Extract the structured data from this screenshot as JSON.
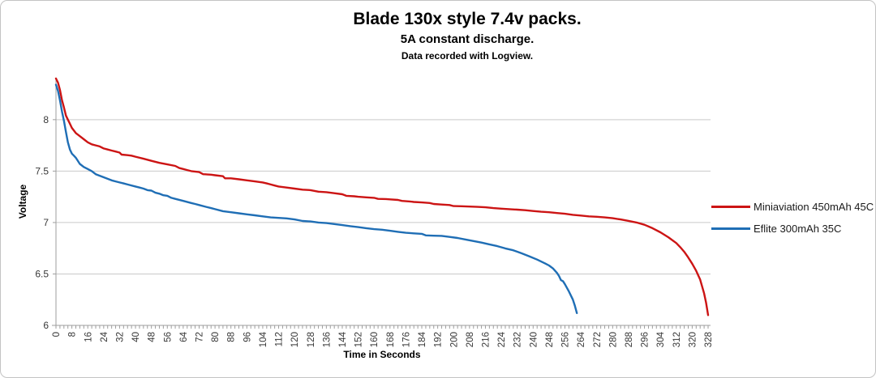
{
  "chart_data": {
    "type": "line",
    "title": "Blade 130x style 7.4v packs.",
    "subtitle": "5A constant discharge.",
    "note": "Data recorded with Logview.",
    "xlabel": "Time in Seconds",
    "ylabel": "Voltage",
    "xlim": [
      0,
      328
    ],
    "ylim": [
      6,
      8.4
    ],
    "grid": "horizontal",
    "legend_position": "right",
    "x_tick_step": 8,
    "x_minor_tick_step": 2,
    "x_ticks": [
      0,
      8,
      16,
      24,
      32,
      40,
      48,
      56,
      64,
      72,
      80,
      88,
      96,
      104,
      112,
      120,
      128,
      136,
      144,
      152,
      160,
      168,
      176,
      184,
      192,
      200,
      208,
      216,
      224,
      232,
      240,
      248,
      256,
      264,
      272,
      280,
      288,
      296,
      304,
      312,
      320,
      328
    ],
    "y_ticks": [
      6,
      6.5,
      7,
      7.5,
      8
    ],
    "y_tick_labels": [
      "6",
      "6.5",
      "7",
      "7.5",
      "8"
    ],
    "colors": {
      "grid": "#c9c9c9",
      "axis": "#9e9e9e",
      "tick_text": "#383838"
    },
    "series": [
      {
        "name": "Miniaviation 450mAh 45C",
        "color": "#cc1414",
        "points": [
          [
            0,
            8.4
          ],
          [
            1,
            8.36
          ],
          [
            2,
            8.29
          ],
          [
            3,
            8.19
          ],
          [
            4,
            8.12
          ],
          [
            5,
            8.04
          ],
          [
            6,
            8.0
          ],
          [
            7,
            7.96
          ],
          [
            8,
            7.92
          ],
          [
            10,
            7.87
          ],
          [
            12,
            7.84
          ],
          [
            14,
            7.81
          ],
          [
            16,
            7.78
          ],
          [
            18,
            7.76
          ],
          [
            20,
            7.75
          ],
          [
            22,
            7.74
          ],
          [
            24,
            7.72
          ],
          [
            26,
            7.71
          ],
          [
            28,
            7.7
          ],
          [
            30,
            7.69
          ],
          [
            32,
            7.68
          ],
          [
            33,
            7.66
          ],
          [
            36,
            7.655
          ],
          [
            38,
            7.65
          ],
          [
            40,
            7.64
          ],
          [
            44,
            7.62
          ],
          [
            48,
            7.6
          ],
          [
            52,
            7.58
          ],
          [
            56,
            7.565
          ],
          [
            60,
            7.55
          ],
          [
            62,
            7.53
          ],
          [
            64,
            7.52
          ],
          [
            66,
            7.51
          ],
          [
            68,
            7.5
          ],
          [
            72,
            7.49
          ],
          [
            74,
            7.47
          ],
          [
            78,
            7.465
          ],
          [
            80,
            7.46
          ],
          [
            84,
            7.45
          ],
          [
            85,
            7.43
          ],
          [
            88,
            7.43
          ],
          [
            92,
            7.42
          ],
          [
            96,
            7.41
          ],
          [
            100,
            7.4
          ],
          [
            104,
            7.39
          ],
          [
            106,
            7.38
          ],
          [
            108,
            7.37
          ],
          [
            110,
            7.36
          ],
          [
            112,
            7.35
          ],
          [
            116,
            7.34
          ],
          [
            120,
            7.33
          ],
          [
            124,
            7.32
          ],
          [
            128,
            7.315
          ],
          [
            132,
            7.3
          ],
          [
            136,
            7.295
          ],
          [
            140,
            7.285
          ],
          [
            144,
            7.275
          ],
          [
            146,
            7.26
          ],
          [
            150,
            7.255
          ],
          [
            152,
            7.25
          ],
          [
            156,
            7.245
          ],
          [
            160,
            7.24
          ],
          [
            162,
            7.23
          ],
          [
            166,
            7.228
          ],
          [
            168,
            7.225
          ],
          [
            172,
            7.22
          ],
          [
            174,
            7.21
          ],
          [
            178,
            7.205
          ],
          [
            180,
            7.2
          ],
          [
            184,
            7.195
          ],
          [
            188,
            7.19
          ],
          [
            190,
            7.18
          ],
          [
            194,
            7.175
          ],
          [
            198,
            7.17
          ],
          [
            200,
            7.16
          ],
          [
            204,
            7.158
          ],
          [
            208,
            7.155
          ],
          [
            212,
            7.152
          ],
          [
            216,
            7.148
          ],
          [
            220,
            7.14
          ],
          [
            224,
            7.135
          ],
          [
            228,
            7.13
          ],
          [
            232,
            7.125
          ],
          [
            236,
            7.12
          ],
          [
            240,
            7.112
          ],
          [
            244,
            7.105
          ],
          [
            248,
            7.1
          ],
          [
            252,
            7.092
          ],
          [
            256,
            7.085
          ],
          [
            260,
            7.075
          ],
          [
            264,
            7.068
          ],
          [
            268,
            7.06
          ],
          [
            272,
            7.056
          ],
          [
            276,
            7.05
          ],
          [
            280,
            7.042
          ],
          [
            284,
            7.03
          ],
          [
            288,
            7.016
          ],
          [
            292,
            7.0
          ],
          [
            296,
            6.978
          ],
          [
            300,
            6.945
          ],
          [
            304,
            6.905
          ],
          [
            308,
            6.857
          ],
          [
            312,
            6.8
          ],
          [
            314,
            6.76
          ],
          [
            316,
            6.715
          ],
          [
            318,
            6.66
          ],
          [
            320,
            6.6
          ],
          [
            322,
            6.53
          ],
          [
            324,
            6.445
          ],
          [
            326,
            6.31
          ],
          [
            327,
            6.22
          ],
          [
            328,
            6.1
          ]
        ]
      },
      {
        "name": "Eflite 300mAh 35C",
        "color": "#1f6eb5",
        "points": [
          [
            0,
            8.34
          ],
          [
            1,
            8.28
          ],
          [
            2,
            8.19
          ],
          [
            3,
            8.08
          ],
          [
            4,
            7.99
          ],
          [
            5,
            7.88
          ],
          [
            6,
            7.78
          ],
          [
            7,
            7.71
          ],
          [
            8,
            7.67
          ],
          [
            9,
            7.65
          ],
          [
            10,
            7.63
          ],
          [
            12,
            7.57
          ],
          [
            14,
            7.54
          ],
          [
            16,
            7.52
          ],
          [
            18,
            7.5
          ],
          [
            20,
            7.47
          ],
          [
            22,
            7.455
          ],
          [
            24,
            7.44
          ],
          [
            26,
            7.425
          ],
          [
            28,
            7.41
          ],
          [
            30,
            7.4
          ],
          [
            32,
            7.39
          ],
          [
            34,
            7.38
          ],
          [
            36,
            7.37
          ],
          [
            40,
            7.35
          ],
          [
            42,
            7.34
          ],
          [
            44,
            7.33
          ],
          [
            46,
            7.315
          ],
          [
            48,
            7.31
          ],
          [
            50,
            7.29
          ],
          [
            52,
            7.28
          ],
          [
            54,
            7.265
          ],
          [
            56,
            7.26
          ],
          [
            58,
            7.24
          ],
          [
            60,
            7.23
          ],
          [
            64,
            7.21
          ],
          [
            68,
            7.19
          ],
          [
            70,
            7.18
          ],
          [
            72,
            7.17
          ],
          [
            76,
            7.15
          ],
          [
            78,
            7.14
          ],
          [
            80,
            7.13
          ],
          [
            84,
            7.11
          ],
          [
            88,
            7.1
          ],
          [
            92,
            7.09
          ],
          [
            96,
            7.08
          ],
          [
            100,
            7.07
          ],
          [
            104,
            7.06
          ],
          [
            108,
            7.05
          ],
          [
            112,
            7.045
          ],
          [
            116,
            7.04
          ],
          [
            120,
            7.03
          ],
          [
            124,
            7.015
          ],
          [
            128,
            7.01
          ],
          [
            132,
            7.0
          ],
          [
            136,
            6.995
          ],
          [
            140,
            6.985
          ],
          [
            144,
            6.975
          ],
          [
            148,
            6.965
          ],
          [
            152,
            6.955
          ],
          [
            156,
            6.945
          ],
          [
            160,
            6.936
          ],
          [
            164,
            6.93
          ],
          [
            168,
            6.92
          ],
          [
            172,
            6.91
          ],
          [
            176,
            6.9
          ],
          [
            180,
            6.895
          ],
          [
            184,
            6.89
          ],
          [
            186,
            6.875
          ],
          [
            190,
            6.872
          ],
          [
            194,
            6.87
          ],
          [
            198,
            6.86
          ],
          [
            202,
            6.85
          ],
          [
            206,
            6.835
          ],
          [
            210,
            6.82
          ],
          [
            214,
            6.805
          ],
          [
            218,
            6.788
          ],
          [
            222,
            6.77
          ],
          [
            226,
            6.748
          ],
          [
            230,
            6.73
          ],
          [
            234,
            6.702
          ],
          [
            238,
            6.672
          ],
          [
            242,
            6.64
          ],
          [
            246,
            6.603
          ],
          [
            248,
            6.582
          ],
          [
            250,
            6.553
          ],
          [
            252,
            6.51
          ],
          [
            253,
            6.48
          ],
          [
            254,
            6.44
          ],
          [
            255,
            6.43
          ],
          [
            256,
            6.4
          ],
          [
            258,
            6.33
          ],
          [
            260,
            6.25
          ],
          [
            261,
            6.19
          ],
          [
            262,
            6.12
          ]
        ]
      }
    ]
  }
}
